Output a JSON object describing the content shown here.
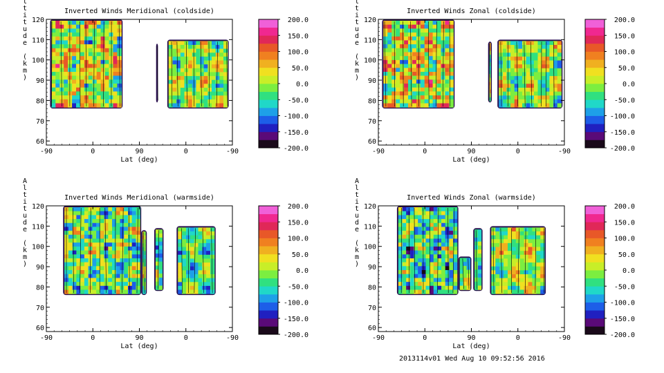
{
  "footer": "2013114v01 Wed Aug 10 09:52:56 2016",
  "colorbar": {
    "labels": [
      "200.0",
      "150.0",
      "100.0",
      "50.0",
      "0.0",
      "-50.0",
      "-100.0",
      "-150.0",
      "-200.0"
    ],
    "range": [
      -200,
      200
    ],
    "colors": [
      "#1a0a1a",
      "#5a0a78",
      "#2020c0",
      "#1d5ee8",
      "#1ea0e8",
      "#20d8c8",
      "#30e080",
      "#7cee40",
      "#c8ee28",
      "#f0e020",
      "#f0b020",
      "#f08020",
      "#e85828",
      "#e02858",
      "#f02890",
      "#f060d8"
    ]
  },
  "chart_data": [
    {
      "type": "heatmap",
      "title": "Inverted Winds Meridional (coldside)",
      "xlabel": "Lat (deg)",
      "ylabel": "Altitude (km)",
      "xticks": [
        "-90",
        "0",
        "90",
        "0",
        "-90"
      ],
      "yticks": [
        "60",
        "70",
        "80",
        "90",
        "100",
        "110",
        "120"
      ],
      "ylim": [
        58,
        120
      ],
      "zlim": [
        -200,
        200
      ]
    },
    {
      "type": "heatmap",
      "title": "Inverted Winds Zonal (coldside)",
      "xlabel": "Lat (deg)",
      "ylabel": "Altitude (km)",
      "xticks": [
        "-90",
        "0",
        "90",
        "0",
        "-90"
      ],
      "yticks": [
        "60",
        "70",
        "80",
        "90",
        "100",
        "110",
        "120"
      ],
      "ylim": [
        58,
        120
      ],
      "zlim": [
        -200,
        200
      ]
    },
    {
      "type": "heatmap",
      "title": "Inverted Winds Meridional (warmside)",
      "xlabel": "Lat (deg)",
      "ylabel": "Altitude (km)",
      "xticks": [
        "-90",
        "0",
        "90",
        "0",
        "-90"
      ],
      "yticks": [
        "60",
        "70",
        "80",
        "90",
        "100",
        "110",
        "120"
      ],
      "ylim": [
        58,
        120
      ],
      "zlim": [
        -200,
        200
      ]
    },
    {
      "type": "heatmap",
      "title": "Inverted Winds Zonal (warmside)",
      "xlabel": "Lat (deg)",
      "ylabel": "Altitude (km)",
      "xticks": [
        "-90",
        "0",
        "90",
        "0",
        "-90"
      ],
      "yticks": [
        "60",
        "70",
        "80",
        "90",
        "100",
        "110",
        "120"
      ],
      "ylim": [
        58,
        120
      ],
      "zlim": [
        -200,
        200
      ]
    }
  ]
}
